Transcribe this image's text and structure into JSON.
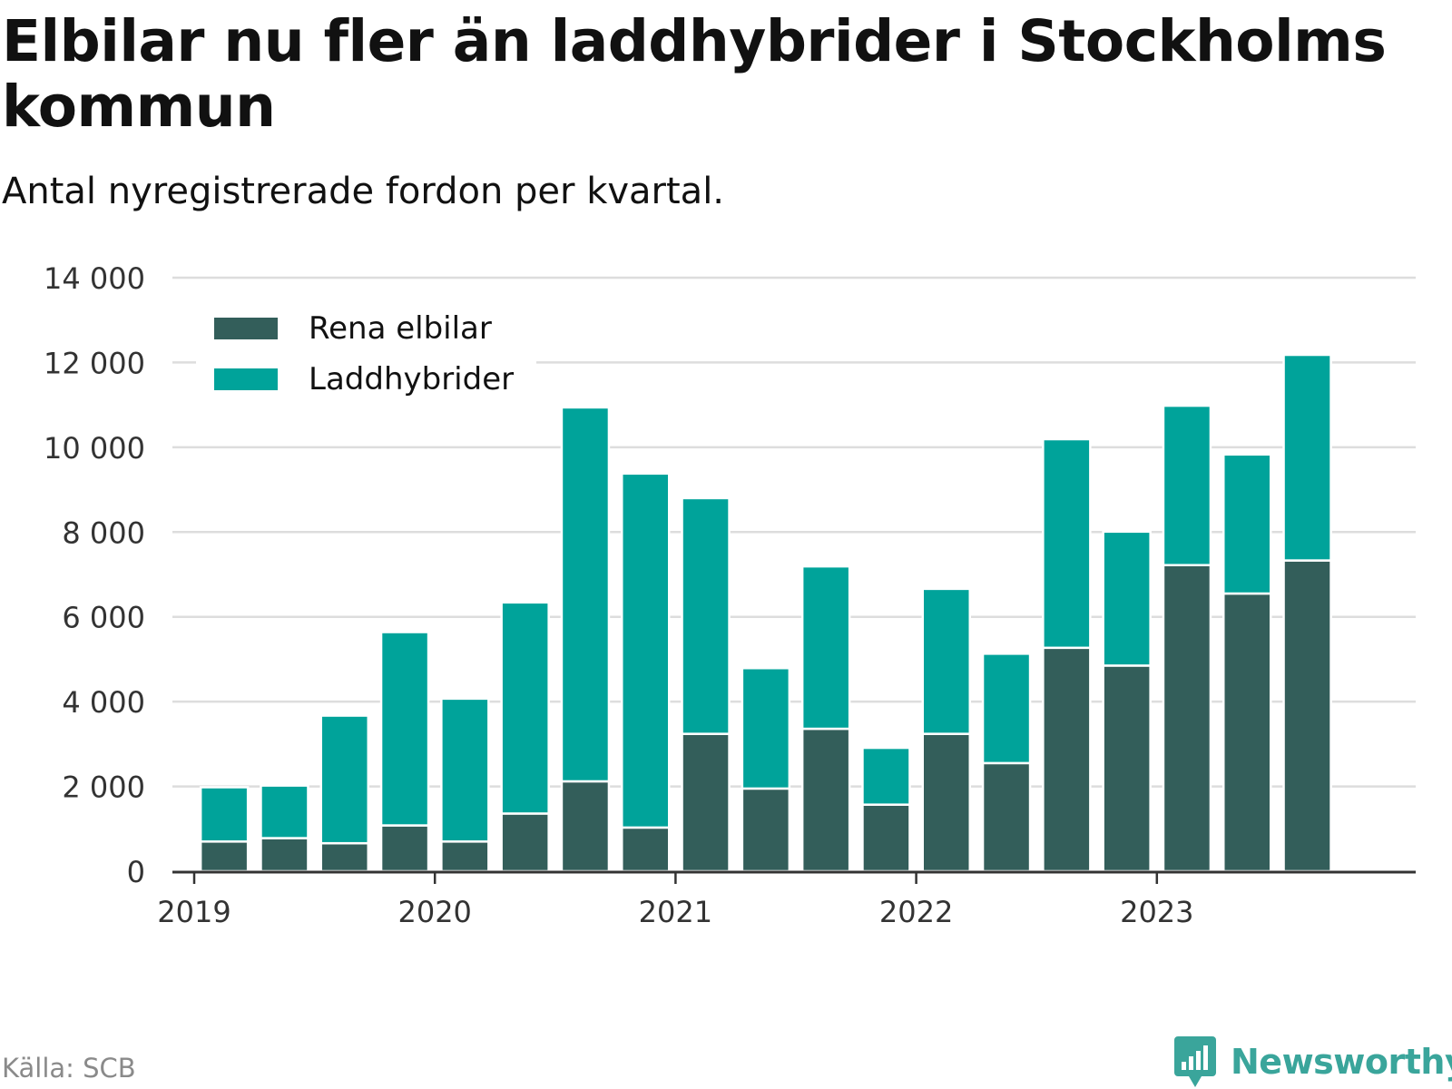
{
  "header": {
    "title": "Elbilar nu fler än laddhybrider i Stockholms kommun",
    "subtitle": "Antal nyregistrerade fordon per kvartal."
  },
  "footer": {
    "source": "Källa: SCB",
    "brand": "Newsworthy"
  },
  "colors": {
    "elbilar": "#335e5a",
    "laddhybrider": "#00a39a",
    "grid": "#dddddd",
    "axis": "#333333",
    "brand": "#3aa59b"
  },
  "chart_data": {
    "type": "bar",
    "stacked": true,
    "title": "Elbilar nu fler än laddhybrider i Stockholms kommun",
    "subtitle": "Antal nyregistrerade fordon per kvartal.",
    "xlabel": "",
    "ylabel": "",
    "ylim": [
      0,
      14000
    ],
    "yticks": [
      0,
      2000,
      4000,
      6000,
      8000,
      10000,
      12000,
      14000
    ],
    "ytick_labels": [
      "0",
      "2 000",
      "4 000",
      "6 000",
      "8 000",
      "10 000",
      "12 000",
      "14 000"
    ],
    "xticks": [
      "2019",
      "2020",
      "2021",
      "2022",
      "2023"
    ],
    "grid": true,
    "legend_position": "top-left",
    "categories": [
      "2019 Q1",
      "2019 Q2",
      "2019 Q3",
      "2019 Q4",
      "2020 Q1",
      "2020 Q2",
      "2020 Q3",
      "2020 Q4",
      "2021 Q1",
      "2021 Q2",
      "2021 Q3",
      "2021 Q4",
      "2022 Q1",
      "2022 Q2",
      "2022 Q3",
      "2022 Q4",
      "2023 Q1",
      "2023 Q2",
      "2023 Q3",
      "2023 Q4"
    ],
    "series": [
      {
        "name": "Rena elbilar",
        "color": "#335e5a",
        "values": [
          700,
          780,
          660,
          1080,
          700,
          1360,
          2120,
          1030,
          3240,
          1950,
          3360,
          1570,
          3240,
          2550,
          5270,
          4850,
          7220,
          6550,
          7330,
          0
        ]
      },
      {
        "name": "Laddhybrider",
        "color": "#00a39a",
        "values": [
          1280,
          1240,
          3010,
          4560,
          3370,
          4980,
          8820,
          8350,
          5560,
          2840,
          3830,
          1340,
          3420,
          2580,
          4920,
          3160,
          3760,
          3280,
          4850,
          0
        ]
      }
    ]
  }
}
